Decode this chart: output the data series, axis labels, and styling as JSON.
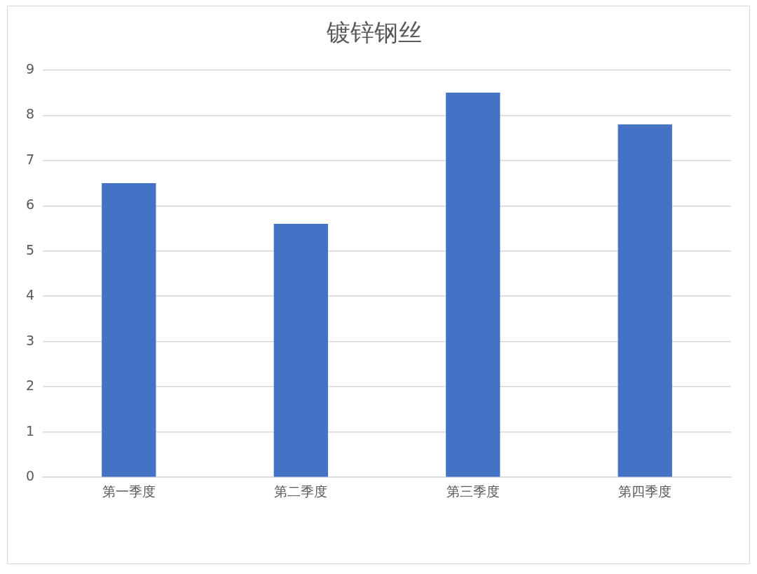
{
  "chart_data": {
    "type": "bar",
    "title": "镀锌钢丝",
    "categories": [
      "第一季度",
      "第二季度",
      "第三季度",
      "第四季度"
    ],
    "values": [
      6.5,
      5.6,
      8.5,
      7.8
    ],
    "color": "#4472c4",
    "ylim": [
      0,
      9
    ],
    "yticks": [
      0,
      1,
      2,
      3,
      4,
      5,
      6,
      7,
      8,
      9
    ],
    "grid": "y",
    "legend": false
  }
}
